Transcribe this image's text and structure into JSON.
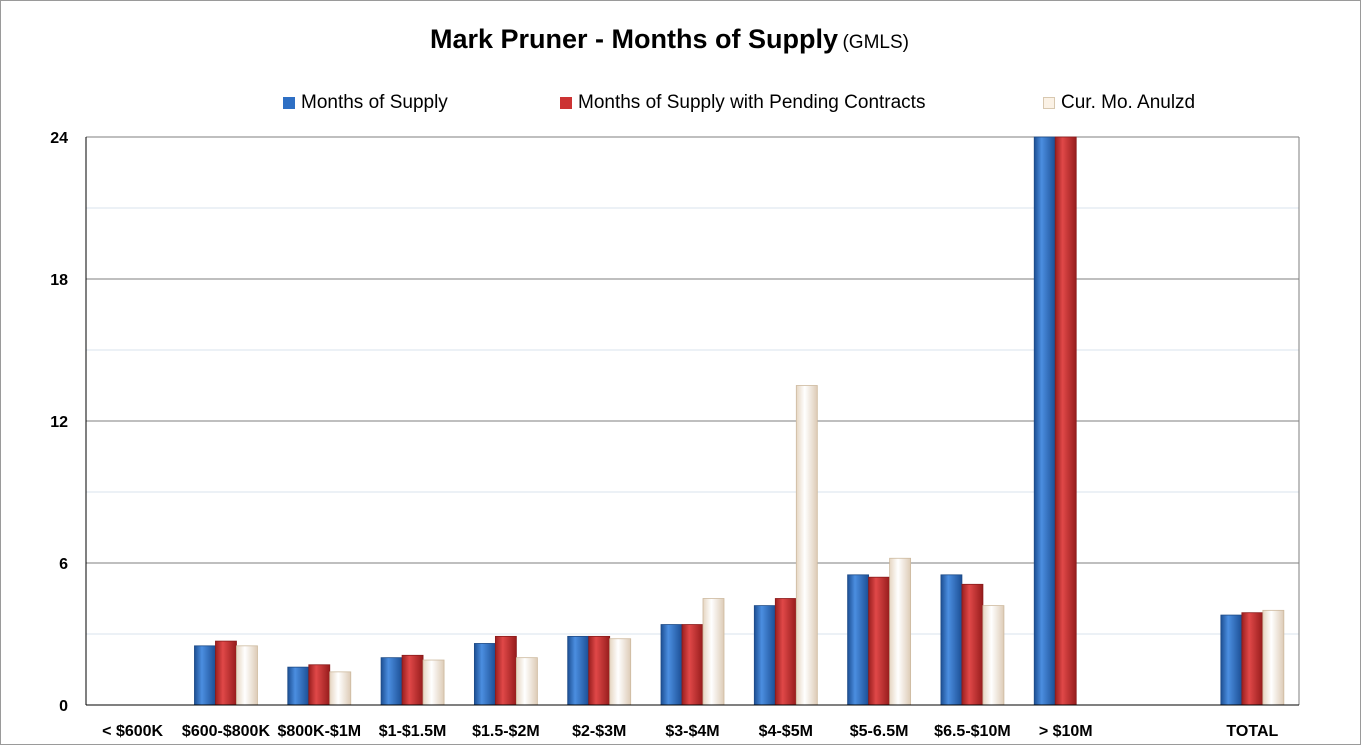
{
  "title": "Mark Pruner - Months of Supply",
  "subtitle": "(GMLS)",
  "colors": {
    "series1": "#2e6fc4",
    "series2": "#cc3333",
    "series3": "#fbf2e6",
    "gridline": "#7f7f7f",
    "minorGridline": "#d9e3ee"
  },
  "chart_data": {
    "type": "bar",
    "title": "Mark Pruner - Months of Supply (GMLS)",
    "xlabel": "",
    "ylabel": "",
    "ylim": [
      0,
      24
    ],
    "yticks": [
      0,
      6,
      12,
      18,
      24
    ],
    "grid": true,
    "legend_position": "top",
    "categories": [
      "< $600K",
      "$600-$800K",
      "$800K-$1M",
      "$1-$1.5M",
      "$1.5-$2M",
      "$2-$3M",
      "$3-$4M",
      "$4-$5M",
      "$5-6.5M",
      "$6.5-$10M",
      "> $10M",
      "",
      "TOTAL"
    ],
    "series": [
      {
        "name": "Months of Supply",
        "color": "#2e6fc4",
        "values": [
          null,
          2.5,
          1.6,
          2.0,
          2.6,
          2.9,
          3.4,
          4.2,
          5.5,
          5.5,
          24,
          null,
          3.8
        ]
      },
      {
        "name": "Months of Supply with Pending Contracts",
        "color": "#cc3333",
        "values": [
          null,
          2.7,
          1.7,
          2.1,
          2.9,
          2.9,
          3.4,
          4.5,
          5.4,
          5.1,
          24,
          null,
          3.9
        ]
      },
      {
        "name": "Cur. Mo. Anulzd",
        "color": "#fbf2e6",
        "values": [
          null,
          2.5,
          1.4,
          1.9,
          2.0,
          2.8,
          4.5,
          13.5,
          6.2,
          4.2,
          null,
          null,
          4.0
        ]
      }
    ]
  }
}
